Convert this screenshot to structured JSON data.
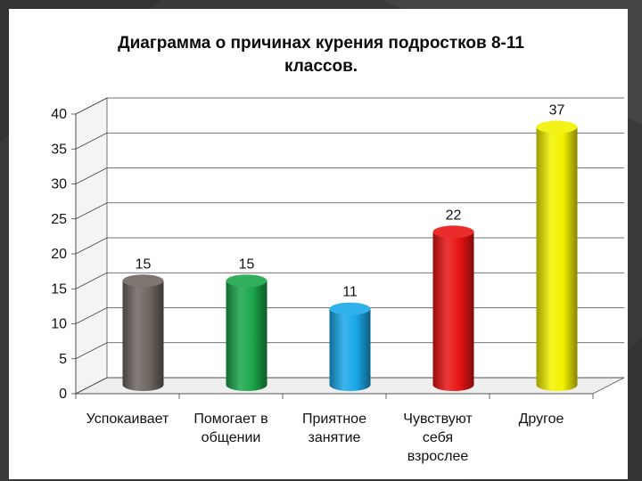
{
  "chart_data": {
    "type": "bar",
    "title": "Диаграмма о причинах курения подростков 8-11 классов.",
    "categories": [
      "Успокаивает",
      "Помогает в общении",
      "Приятное занятие",
      "Чувствуют себя взрослее",
      "Другое"
    ],
    "category_lines": [
      [
        "Успокаивает"
      ],
      [
        "Помогает в",
        "общении"
      ],
      [
        "Приятное",
        "занятие"
      ],
      [
        "Чувствуют",
        "себя",
        "взрослее"
      ],
      [
        "Другое"
      ]
    ],
    "values": [
      15,
      15,
      11,
      22,
      37
    ],
    "colors": [
      "#6e6660",
      "#1aa64a",
      "#1aa8e8",
      "#e81414",
      "#f2f200"
    ],
    "ylim": [
      0,
      40
    ],
    "yticks": [
      0,
      5,
      10,
      15,
      20,
      25,
      30,
      35,
      40
    ],
    "grid": true,
    "legend": "none"
  },
  "colors": {
    "background": "#3a3a3a",
    "plot_wall": "#ffffff",
    "text": "#111111"
  }
}
